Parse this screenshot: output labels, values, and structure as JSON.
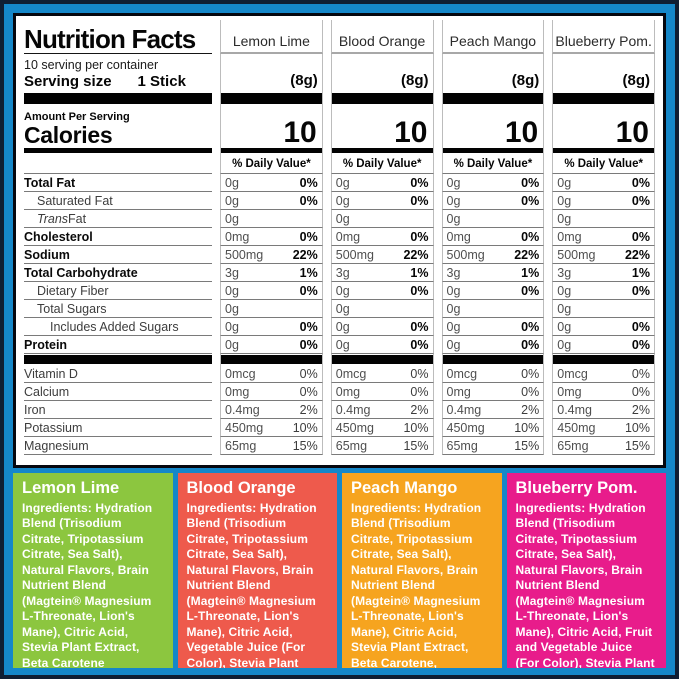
{
  "header": {
    "title": "Nutrition Facts",
    "servings_text": "10 serving per container",
    "serving_size_label": "Serving size",
    "serving_size_value": "1 Stick",
    "amount_per_serving": "Amount Per Serving",
    "calories_label": "Calories",
    "daily_value_label": "% Daily Value*",
    "ingredients_label": "Ingredients:"
  },
  "colors": {
    "frame_blue": "#1587C9",
    "frame_dark_navy": "#0F1E33",
    "panel_border_black": "#05070F",
    "lemon_lime_green": "#8CC63F",
    "blood_orange_red": "#EE5A4C",
    "peach_mango_orange": "#F6A41F",
    "blueberry_pom_pink": "#E81C8B"
  },
  "flavors": [
    {
      "name": "Lemon Lime",
      "slug": "lemon-lime",
      "serving_weight": "(8g)",
      "calories": "10",
      "color": "#8CC63F",
      "ingredients": "Hydration Blend (Trisodium Citrate, Tripotassium Citrate, Sea Salt), Natural Flavors, Brain Nutrient Blend (Magtein® Magnesium L-Threonate, Lion's Mane), Citric Acid, Stevia Plant Extract, Beta Carotene"
    },
    {
      "name": "Blood Orange",
      "slug": "blood-orange",
      "serving_weight": "(8g)",
      "calories": "10",
      "color": "#EE5A4C",
      "ingredients": "Hydration Blend (Trisodium Citrate, Tripotassium Citrate, Sea Salt), Natural Flavors, Brain Nutrient Blend (Magtein® Magnesium L-Threonate, Lion's Mane), Citric Acid, Vegetable Juice (For Color), Stevia Plant Extract, Beta Carotene"
    },
    {
      "name": "Peach Mango",
      "slug": "peach-mango",
      "serving_weight": "(8g)",
      "calories": "10",
      "color": "#F6A41F",
      "ingredients": "Hydration Blend (Trisodium Citrate, Tripotassium Citrate, Sea Salt), Natural Flavors, Brain Nutrient Blend (Magtein® Magnesium L-Threonate, Lion's Mane), Citric Acid, Stevia Plant Extract, Beta Carotene, Vegetable Juice (For Color)"
    },
    {
      "name": "Blueberry Pom.",
      "slug": "blueberry-pom",
      "serving_weight": "(8g)",
      "calories": "10",
      "color": "#E81C8B",
      "ingredients": "Hydration Blend (Trisodium Citrate, Tripotassium Citrate, Sea Salt), Natural Flavors, Brain Nutrient Blend (Magtein® Magnesium L-Threonate, Lion's Mane), Citric Acid, Fruit and Vegetable Juice (For Color), Stevia Plant Extract"
    }
  ],
  "rows": [
    {
      "label": "Total Fat",
      "bold": true,
      "indent": 0,
      "value": "0g",
      "dv": "0%",
      "dv_bold": true
    },
    {
      "label": "Saturated Fat",
      "bold": false,
      "indent": 1,
      "value": "0g",
      "dv": "0%",
      "dv_bold": true
    },
    {
      "label_italic": "Trans",
      "label": " Fat",
      "bold": false,
      "indent": 1,
      "value": "0g",
      "dv": "",
      "dv_bold": false
    },
    {
      "label": "Cholesterol",
      "bold": true,
      "indent": 0,
      "value": "0mg",
      "dv": "0%",
      "dv_bold": true
    },
    {
      "label": "Sodium",
      "bold": true,
      "indent": 0,
      "value": "500mg",
      "dv": "22%",
      "dv_bold": true
    },
    {
      "label": "Total Carbohydrate",
      "bold": true,
      "indent": 0,
      "value": "3g",
      "dv": "1%",
      "dv_bold": true
    },
    {
      "label": "Dietary Fiber",
      "bold": false,
      "indent": 1,
      "value": "0g",
      "dv": "0%",
      "dv_bold": true
    },
    {
      "label": "Total Sugars",
      "bold": false,
      "indent": 1,
      "value": "0g",
      "dv": "",
      "dv_bold": false
    },
    {
      "label": "Includes Added Sugars",
      "bold": false,
      "indent": 2,
      "value": "0g",
      "dv": "0%",
      "dv_bold": true
    },
    {
      "label": "Protein",
      "bold": true,
      "indent": 0,
      "value": "0g",
      "dv": "0%",
      "dv_bold": true
    },
    {
      "type": "separator"
    },
    {
      "label": "Vitamin D",
      "bold": false,
      "indent": 0,
      "value": "0mcg",
      "dv": "0%",
      "dv_bold": false
    },
    {
      "label": "Calcium",
      "bold": false,
      "indent": 0,
      "value": "0mg",
      "dv": "0%",
      "dv_bold": false
    },
    {
      "label": "Iron",
      "bold": false,
      "indent": 0,
      "value": "0.4mg",
      "dv": "2%",
      "dv_bold": false
    },
    {
      "label": "Potassium",
      "bold": false,
      "indent": 0,
      "value": "450mg",
      "dv": "10%",
      "dv_bold": false
    },
    {
      "label": "Magnesium",
      "bold": false,
      "indent": 0,
      "value": "65mg",
      "dv": "15%",
      "dv_bold": false
    }
  ]
}
